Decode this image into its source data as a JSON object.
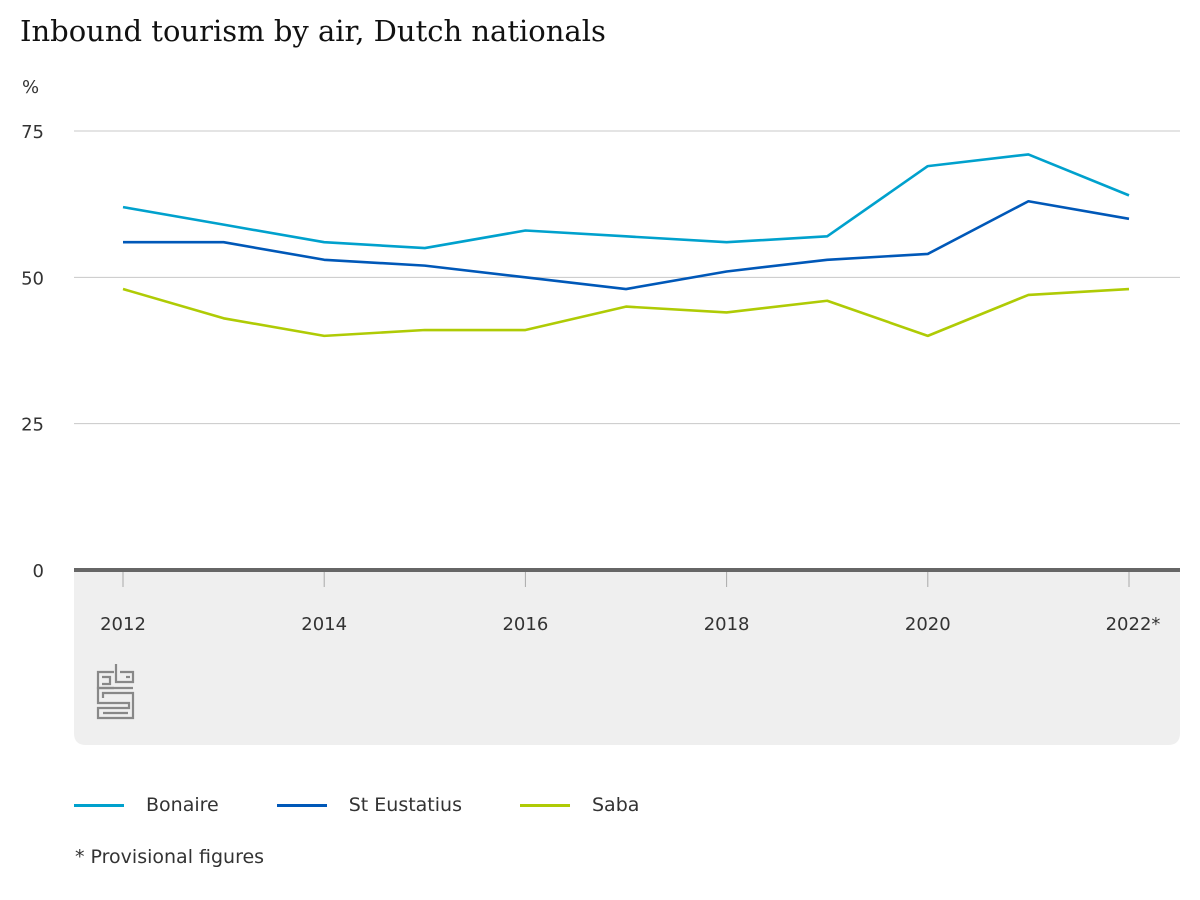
{
  "title": "Inbound tourism by air, Dutch nationals",
  "footnote": "* Provisional figures",
  "logo": "cbs",
  "chart_data": {
    "type": "line",
    "title": "Inbound tourism by air, Dutch nationals",
    "ylabel": "%",
    "xlabel": "",
    "x": [
      2012,
      2013,
      2014,
      2015,
      2016,
      2017,
      2018,
      2019,
      2020,
      2021,
      2022
    ],
    "x_tick_labels": [
      "2012",
      "2014",
      "2016",
      "2018",
      "2020",
      "2022*"
    ],
    "x_tick_values": [
      2012,
      2014,
      2016,
      2018,
      2020,
      2022
    ],
    "y_ticks": [
      0,
      25,
      50,
      75
    ],
    "ylim": [
      0,
      75
    ],
    "grid": true,
    "legend_placement": "bottom",
    "series": [
      {
        "name": "Bonaire",
        "color": "#00a1cd",
        "values": [
          62,
          59,
          56,
          55,
          58,
          57,
          56,
          57,
          69,
          71,
          64
        ]
      },
      {
        "name": "St Eustatius",
        "color": "#0058b8",
        "values": [
          56,
          56,
          53,
          52,
          50,
          48,
          51,
          53,
          54,
          63,
          60
        ]
      },
      {
        "name": "Saba",
        "color": "#afcb05",
        "values": [
          48,
          43,
          40,
          41,
          41,
          45,
          44,
          46,
          40,
          47,
          48
        ]
      }
    ]
  }
}
